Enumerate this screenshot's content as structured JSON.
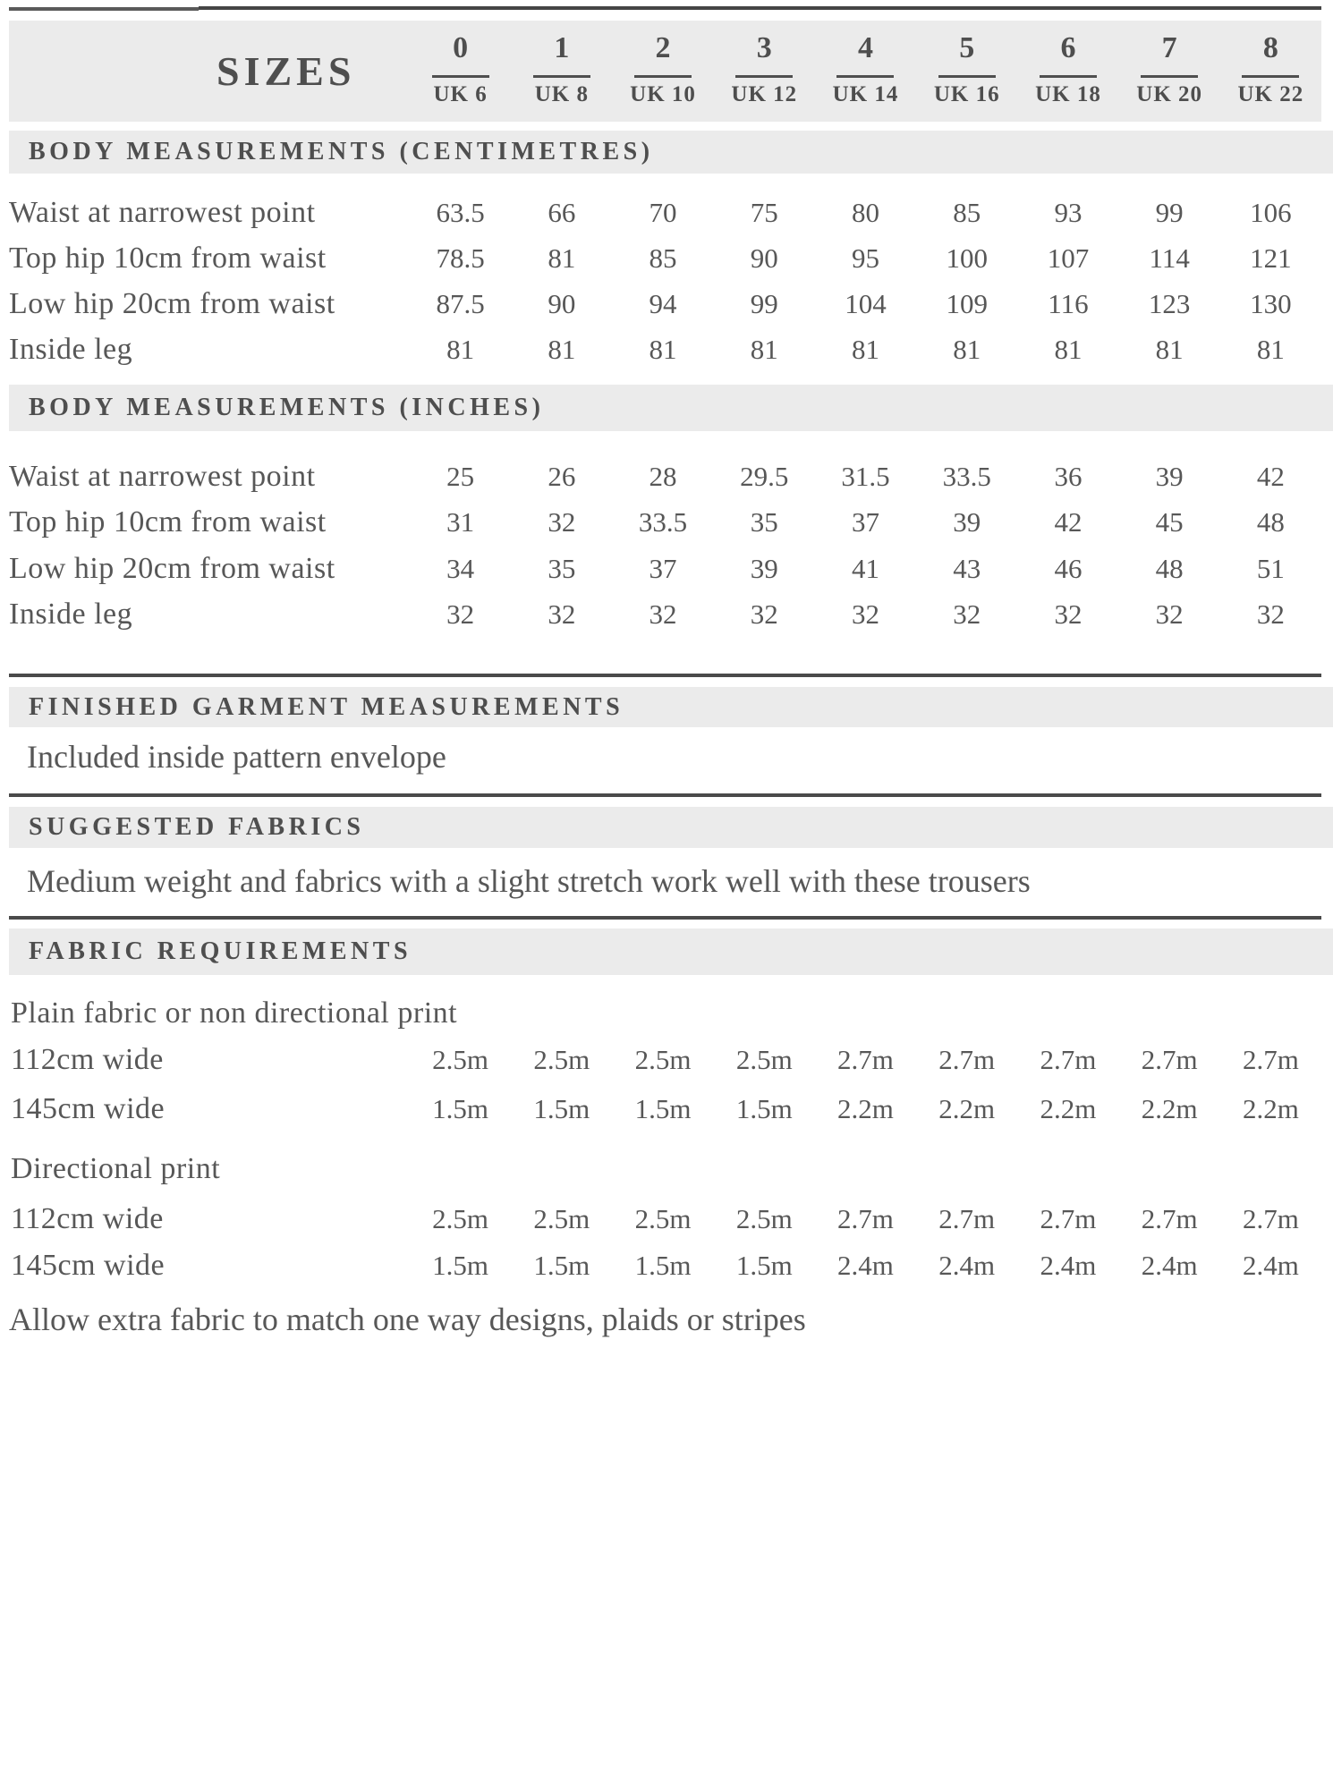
{
  "colors": {
    "band_bg": "#ebebeb",
    "rule_dark": "#4a4a4a",
    "text": "#575757",
    "heading_text": "#4e4e4e"
  },
  "table": {
    "title": "SIZES",
    "size_columns": [
      {
        "size": "0",
        "uk": "UK 6"
      },
      {
        "size": "1",
        "uk": "UK 8"
      },
      {
        "size": "2",
        "uk": "UK 10"
      },
      {
        "size": "3",
        "uk": "UK 12"
      },
      {
        "size": "4",
        "uk": "UK 14"
      },
      {
        "size": "5",
        "uk": "UK 16"
      },
      {
        "size": "6",
        "uk": "UK 18"
      },
      {
        "size": "7",
        "uk": "UK 20"
      },
      {
        "size": "8",
        "uk": "UK 22"
      }
    ],
    "sections": [
      {
        "heading": "BODY MEASUREMENTS (CENTIMETRES)",
        "rows": [
          {
            "label": "Waist at narrowest point",
            "values": [
              "63.5",
              "66",
              "70",
              "75",
              "80",
              "85",
              "93",
              "99",
              "106"
            ]
          },
          {
            "label": "Top hip 10cm from waist",
            "values": [
              "78.5",
              "81",
              "85",
              "90",
              "95",
              "100",
              "107",
              "114",
              "121"
            ]
          },
          {
            "label": "Low hip 20cm from waist",
            "values": [
              "87.5",
              "90",
              "94",
              "99",
              "104",
              "109",
              "116",
              "123",
              "130"
            ]
          },
          {
            "label": "Inside leg",
            "values": [
              "81",
              "81",
              "81",
              "81",
              "81",
              "81",
              "81",
              "81",
              "81"
            ]
          }
        ]
      },
      {
        "heading": "BODY MEASUREMENTS (INCHES)",
        "rows": [
          {
            "label": "Waist at narrowest point",
            "values": [
              "25",
              "26",
              "28",
              "29.5",
              "31.5",
              "33.5",
              "36",
              "39",
              "42"
            ]
          },
          {
            "label": "Top hip 10cm from waist",
            "values": [
              "31",
              "32",
              "33.5",
              "35",
              "37",
              "39",
              "42",
              "45",
              "48"
            ]
          },
          {
            "label": "Low hip 20cm from waist",
            "values": [
              "34",
              "35",
              "37",
              "39",
              "41",
              "43",
              "46",
              "48",
              "51"
            ]
          },
          {
            "label": "Inside leg",
            "values": [
              "32",
              "32",
              "32",
              "32",
              "32",
              "32",
              "32",
              "32",
              "32"
            ]
          }
        ]
      }
    ]
  },
  "finished_garment": {
    "heading": "FINISHED GARMENT MEASUREMENTS",
    "note": "Included inside pattern envelope"
  },
  "suggested_fabrics": {
    "heading": "SUGGESTED FABRICS",
    "note": "Medium weight and fabrics with a slight stretch work well with these trousers"
  },
  "fabric_requirements": {
    "heading": "FABRIC REQUIREMENTS",
    "groups": [
      {
        "heading": "Plain fabric or non directional print",
        "rows": [
          {
            "label": "112cm wide",
            "values": [
              "2.5m",
              "2.5m",
              "2.5m",
              "2.5m",
              "2.7m",
              "2.7m",
              "2.7m",
              "2.7m",
              "2.7m"
            ]
          },
          {
            "label": "145cm wide",
            "values": [
              "1.5m",
              "1.5m",
              "1.5m",
              "1.5m",
              "2.2m",
              "2.2m",
              "2.2m",
              "2.2m",
              "2.2m"
            ]
          }
        ]
      },
      {
        "heading": "Directional print",
        "rows": [
          {
            "label": "112cm wide",
            "values": [
              "2.5m",
              "2.5m",
              "2.5m",
              "2.5m",
              "2.7m",
              "2.7m",
              "2.7m",
              "2.7m",
              "2.7m"
            ]
          },
          {
            "label": "145cm wide",
            "values": [
              "1.5m",
              "1.5m",
              "1.5m",
              "1.5m",
              "2.4m",
              "2.4m",
              "2.4m",
              "2.4m",
              "2.4m"
            ]
          }
        ]
      }
    ],
    "note": "Allow extra fabric to match one way designs, plaids or stripes"
  }
}
